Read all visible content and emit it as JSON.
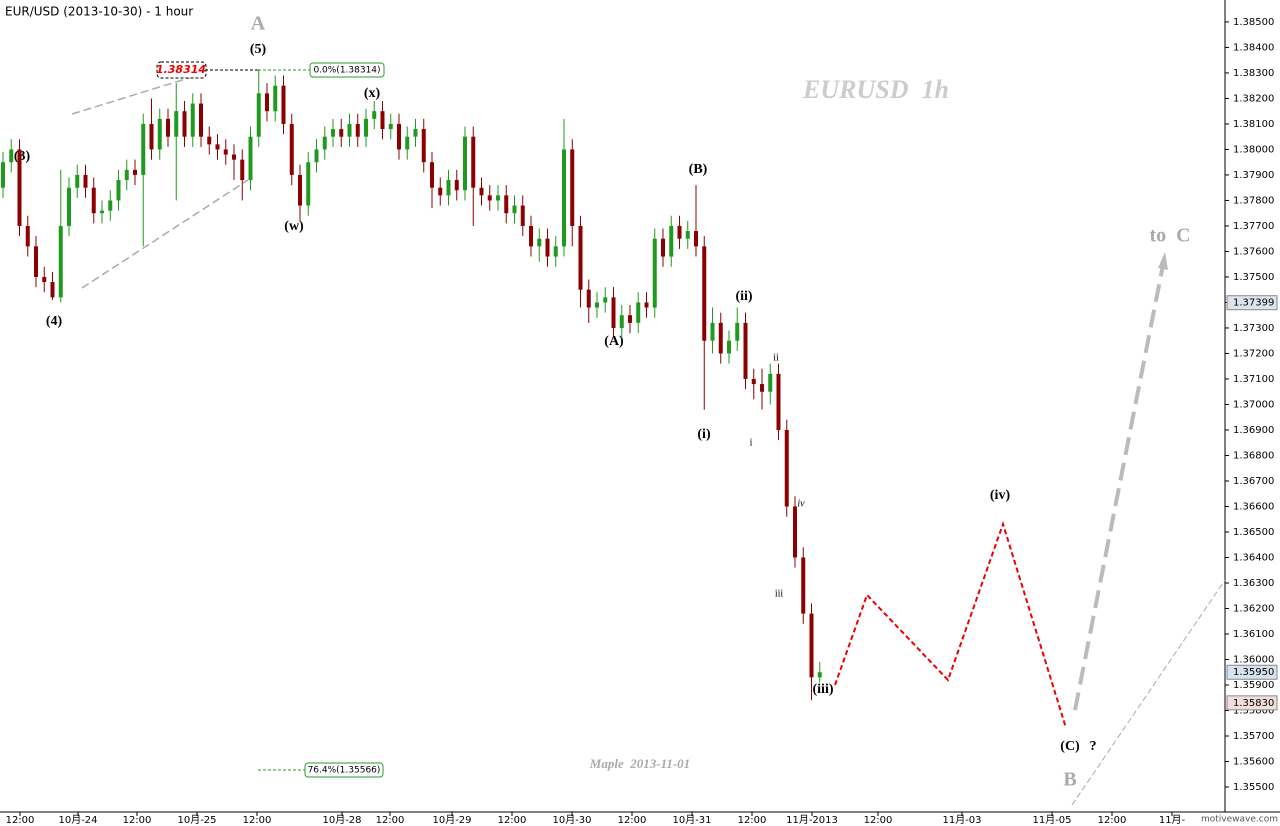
{
  "chart_data": {
    "type": "candlestick",
    "title": "EUR/USD (2013-10-30) - 1 hour",
    "up_color": "#1f9a1f",
    "down_color": "#8b0000",
    "ylim": [
      1.35402,
      1.38586
    ],
    "yticks": [
      {
        "value": 1.355,
        "label": "1.35500"
      },
      {
        "value": 1.356,
        "label": "1.35600"
      },
      {
        "value": 1.357,
        "label": "1.35700"
      },
      {
        "value": 1.358,
        "label": "1.35800"
      },
      {
        "value": 1.359,
        "label": "1.35900"
      },
      {
        "value": 1.36,
        "label": "1.36000"
      },
      {
        "value": 1.361,
        "label": "1.36100"
      },
      {
        "value": 1.362,
        "label": "1.36200"
      },
      {
        "value": 1.363,
        "label": "1.36300"
      },
      {
        "value": 1.364,
        "label": "1.36400"
      },
      {
        "value": 1.365,
        "label": "1.36500"
      },
      {
        "value": 1.366,
        "label": "1.36600"
      },
      {
        "value": 1.367,
        "label": "1.36700"
      },
      {
        "value": 1.368,
        "label": "1.36800"
      },
      {
        "value": 1.369,
        "label": "1.36900"
      },
      {
        "value": 1.37,
        "label": "1.37000"
      },
      {
        "value": 1.371,
        "label": "1.37100"
      },
      {
        "value": 1.372,
        "label": "1.37200"
      },
      {
        "value": 1.373,
        "label": "1.37300"
      },
      {
        "value": 1.374,
        "label": "1.37400"
      },
      {
        "value": 1.375,
        "label": "1.37500"
      },
      {
        "value": 1.376,
        "label": "1.37600"
      },
      {
        "value": 1.377,
        "label": "1.37700"
      },
      {
        "value": 1.378,
        "label": "1.37800"
      },
      {
        "value": 1.379,
        "label": "1.37900"
      },
      {
        "value": 1.38,
        "label": "1.38000"
      },
      {
        "value": 1.381,
        "label": "1.38100"
      },
      {
        "value": 1.382,
        "label": "1.38200"
      },
      {
        "value": 1.383,
        "label": "1.38300"
      },
      {
        "value": 1.384,
        "label": "1.38400"
      },
      {
        "value": 1.385,
        "label": "1.38500"
      }
    ],
    "xlim": [
      0,
      245
    ],
    "xticks": [
      {
        "value": 4,
        "label": "12:00"
      },
      {
        "value": 15.6,
        "label": "10月-24"
      },
      {
        "value": 27.4,
        "label": "12:00"
      },
      {
        "value": 39.4,
        "label": "10月-25"
      },
      {
        "value": 51.4,
        "label": "12:00"
      },
      {
        "value": 68.4,
        "label": "10月-28"
      },
      {
        "value": 78,
        "label": "12:00"
      },
      {
        "value": 90.4,
        "label": "10月-29"
      },
      {
        "value": 102.4,
        "label": "12:00"
      },
      {
        "value": 114.4,
        "label": "10月-30"
      },
      {
        "value": 126.4,
        "label": "12:00"
      },
      {
        "value": 138.4,
        "label": "10月-31"
      },
      {
        "value": 150.4,
        "label": "12:00"
      },
      {
        "value": 162.4,
        "label": "11月-2013"
      },
      {
        "value": 175.6,
        "label": "12:00"
      },
      {
        "value": 192.4,
        "label": "11月-03"
      },
      {
        "value": 210.4,
        "label": "11月-05"
      },
      {
        "value": 222.4,
        "label": "12:00"
      },
      {
        "value": 234.4,
        "label": "11月-"
      }
    ],
    "open": [
      1.3785,
      1.3795,
      1.38,
      1.377,
      1.3762,
      1.375,
      1.3748,
      1.3742,
      1.377,
      1.3785,
      1.379,
      1.3785,
      1.3775,
      1.3776,
      1.378,
      1.3788,
      1.3792,
      1.379,
      1.381,
      1.38,
      1.3812,
      1.3805,
      1.3815,
      1.3805,
      1.3818,
      1.3805,
      1.3802,
      1.38,
      1.3798,
      1.3796,
      1.3788,
      1.3805,
      1.3822,
      1.3815,
      1.3825,
      1.381,
      1.379,
      1.3778,
      1.3795,
      1.38,
      1.3805,
      1.3808,
      1.3805,
      1.381,
      1.3805,
      1.3812,
      1.3815,
      1.3808,
      1.381,
      1.38,
      1.3805,
      1.3808,
      1.3795,
      1.3785,
      1.3782,
      1.3788,
      1.3784,
      1.3805,
      1.3785,
      1.3782,
      1.378,
      1.3782,
      1.3775,
      1.3778,
      1.377,
      1.3762,
      1.3765,
      1.3758,
      1.3762,
      1.38,
      1.377,
      1.3745,
      1.3738,
      1.374,
      1.3742,
      1.373,
      1.3735,
      1.3732,
      1.374,
      1.3738,
      1.3765,
      1.3758,
      1.377,
      1.3765,
      1.3768,
      1.3762,
      1.3725,
      1.3732,
      1.372,
      1.3725,
      1.3732,
      1.371,
      1.3708,
      1.3705,
      1.3712,
      1.369,
      1.366,
      1.364,
      1.3618,
      1.3593
    ],
    "high": [
      1.3799,
      1.3804,
      1.3804,
      1.3774,
      1.3766,
      1.3754,
      1.3752,
      1.3792,
      1.3789,
      1.3794,
      1.3794,
      1.3789,
      1.378,
      1.3784,
      1.3792,
      1.3796,
      1.3796,
      1.3814,
      1.382,
      1.3816,
      1.3816,
      1.3826,
      1.3819,
      1.3822,
      1.3822,
      1.3809,
      1.3806,
      1.3804,
      1.3802,
      1.38,
      1.3809,
      1.38314,
      1.3826,
      1.3829,
      1.3829,
      1.3814,
      1.3794,
      1.3799,
      1.3804,
      1.3809,
      1.3812,
      1.3812,
      1.3814,
      1.3814,
      1.3816,
      1.3819,
      1.3819,
      1.3814,
      1.3814,
      1.3809,
      1.3812,
      1.3812,
      1.3799,
      1.3789,
      1.3792,
      1.3792,
      1.3809,
      1.3809,
      1.3789,
      1.3786,
      1.3786,
      1.3786,
      1.3782,
      1.3782,
      1.3774,
      1.3769,
      1.3769,
      1.3766,
      1.3812,
      1.3804,
      1.3774,
      1.3749,
      1.3744,
      1.3746,
      1.3746,
      1.3739,
      1.3739,
      1.3744,
      1.3744,
      1.3769,
      1.3769,
      1.3774,
      1.3774,
      1.3772,
      1.3786,
      1.3766,
      1.3738,
      1.3736,
      1.3729,
      1.3738,
      1.3736,
      1.3714,
      1.3714,
      1.3716,
      1.3716,
      1.3694,
      1.3664,
      1.3644,
      1.3622,
      1.3599
    ],
    "low": [
      1.3781,
      1.3791,
      1.3766,
      1.3758,
      1.3746,
      1.3744,
      1.3741,
      1.374,
      1.3766,
      1.3781,
      1.3781,
      1.3771,
      1.3771,
      1.3772,
      1.3776,
      1.3784,
      1.3786,
      1.3762,
      1.3796,
      1.3796,
      1.3801,
      1.378,
      1.3801,
      1.3801,
      1.3801,
      1.3798,
      1.3796,
      1.3794,
      1.3788,
      1.378,
      1.3784,
      1.3801,
      1.3811,
      1.3811,
      1.3806,
      1.3786,
      1.3772,
      1.3774,
      1.3791,
      1.3796,
      1.3801,
      1.3801,
      1.3801,
      1.3801,
      1.3801,
      1.3808,
      1.3804,
      1.3804,
      1.3796,
      1.3796,
      1.3801,
      1.3791,
      1.3777,
      1.3778,
      1.3778,
      1.378,
      1.378,
      1.377,
      1.3778,
      1.3776,
      1.3776,
      1.3771,
      1.3771,
      1.3766,
      1.3758,
      1.3756,
      1.3754,
      1.3754,
      1.3758,
      1.3762,
      1.3738,
      1.3732,
      1.3734,
      1.3736,
      1.3726,
      1.3726,
      1.3728,
      1.3728,
      1.3734,
      1.3734,
      1.3754,
      1.3754,
      1.3761,
      1.3761,
      1.3758,
      1.3698,
      1.372,
      1.3716,
      1.3716,
      1.3721,
      1.3706,
      1.3702,
      1.3698,
      1.37,
      1.3686,
      1.3656,
      1.3636,
      1.3614,
      1.3584,
      1.3591
    ],
    "close": [
      1.3795,
      1.38,
      1.377,
      1.3762,
      1.375,
      1.3748,
      1.3742,
      1.377,
      1.3785,
      1.379,
      1.3785,
      1.3775,
      1.3776,
      1.378,
      1.3788,
      1.3792,
      1.379,
      1.381,
      1.38,
      1.3812,
      1.3805,
      1.3815,
      1.3805,
      1.3818,
      1.3805,
      1.3802,
      1.38,
      1.3798,
      1.3796,
      1.3788,
      1.3805,
      1.3822,
      1.3815,
      1.3825,
      1.381,
      1.379,
      1.3778,
      1.3795,
      1.38,
      1.3805,
      1.3808,
      1.3805,
      1.381,
      1.3805,
      1.3812,
      1.3815,
      1.3808,
      1.381,
      1.38,
      1.3805,
      1.3808,
      1.3795,
      1.3785,
      1.3782,
      1.3788,
      1.3784,
      1.3805,
      1.3785,
      1.3782,
      1.378,
      1.3782,
      1.3775,
      1.3778,
      1.377,
      1.3762,
      1.3765,
      1.3758,
      1.3762,
      1.38,
      1.377,
      1.3745,
      1.3738,
      1.374,
      1.3742,
      1.373,
      1.3735,
      1.3732,
      1.374,
      1.3738,
      1.3765,
      1.3758,
      1.377,
      1.3765,
      1.3768,
      1.3762,
      1.3725,
      1.3732,
      1.372,
      1.3725,
      1.3732,
      1.371,
      1.3708,
      1.3705,
      1.3712,
      1.369,
      1.366,
      1.364,
      1.3618,
      1.3593,
      1.3595
    ],
    "price_markers": [
      1.37399,
      {
        "value": 1.3595,
        "label": "1.35950"
      },
      {
        "value": 1.3583,
        "label": "1.35830"
      }
    ],
    "peak_marker": 1.38314,
    "fib_labels": [
      "0.0%(1.38314)",
      "76.4%(1.35566)"
    ],
    "watermark": "motivewave.com",
    "annotations": [
      "A",
      "(5)",
      "(3)",
      "(4)",
      "(x)",
      "(w)",
      "(B)",
      "(A)",
      "(ii)",
      "(i)",
      "ii",
      "i",
      "iv",
      "iii",
      "(iii)",
      "(iv)",
      "(C)",
      "?",
      "B",
      "to  C",
      "EURUSD  1h",
      "Maple  2013-11-01"
    ]
  }
}
